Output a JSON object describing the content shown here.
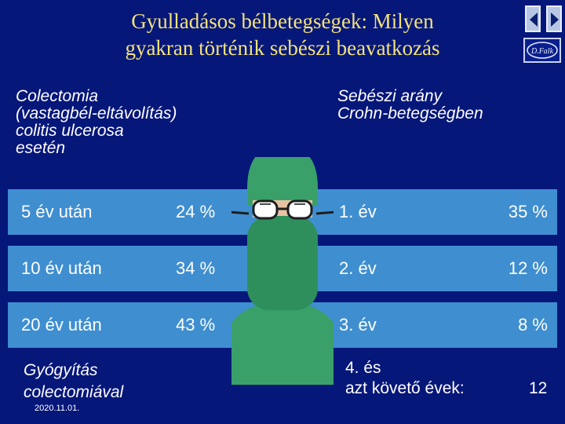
{
  "title": {
    "line1": "Gyulladásos bélbetegségek: Milyen",
    "line2": "gyakran történik sebészi beavatkozás"
  },
  "left_header": {
    "line1": "Colectomia",
    "line2": "(vastagbél-eltávolítás)",
    "line3": "colitis ulcerosa",
    "line4": "esetén"
  },
  "right_header": {
    "line1": "Sebészi arány",
    "line2": "Crohn-betegségben"
  },
  "rows": [
    {
      "label": "5 év után",
      "value": "24 %",
      "year": "1. év",
      "rate": "35 %"
    },
    {
      "label": "10 év után",
      "value": "34 %",
      "year": "2. év",
      "rate": "12 %"
    },
    {
      "label": "20 év után",
      "value": "43 %",
      "year": "3. év",
      "rate": "8 %"
    }
  ],
  "cure": {
    "line1": "Gyógyítás",
    "line2": "colectomiával"
  },
  "year4": {
    "line1": "4. és",
    "line2": "azt követő évek:",
    "rate": "12"
  },
  "date": "2020.11.01.",
  "logo_text": "D.Falk",
  "icons": {
    "prev": "triangle-left-icon",
    "next": "triangle-right-icon",
    "surgeon": "surgeon-illustration"
  },
  "colors": {
    "background": "#06177a",
    "title": "#f2e27a",
    "band": "#3f8ed0",
    "text": "#ffffff"
  }
}
